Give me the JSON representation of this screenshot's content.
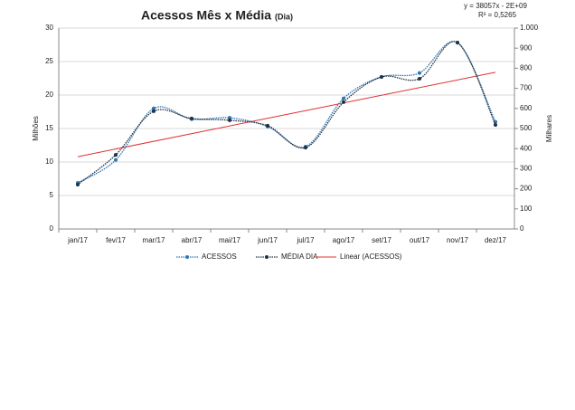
{
  "chart_data": {
    "type": "line",
    "title": "Acessos Mês x Média",
    "title_suffix": "(Dia)",
    "y_label": "Milhões",
    "y2_label": "Milhares",
    "trend_equation": "y = 38057x - 2E+09",
    "trend_r2": "R² = 0,5265",
    "categories": [
      "jan/17",
      "fev/17",
      "mar/17",
      "abr/17",
      "mai/17",
      "jun/17",
      "jul/17",
      "ago/17",
      "set/17",
      "out/17",
      "nov/17",
      "dez/17"
    ],
    "series": [
      {
        "name": "ACESSOS",
        "color": "#2e75b6",
        "values": [
          6.9,
          10.3,
          18.0,
          16.4,
          16.6,
          15.3,
          12.3,
          19.5,
          22.7,
          23.3,
          27.8,
          16.0
        ]
      },
      {
        "name": "MÉDIA DIA",
        "color": "#203040",
        "axis": "y2",
        "values": [
          221,
          369,
          586,
          550,
          541,
          514,
          405,
          631,
          757,
          748,
          928,
          518
        ]
      }
    ],
    "trendline": {
      "name": "Linear (ACESSOS)",
      "color": "#e03030",
      "start": 10.8,
      "end": 23.4
    },
    "ylim": [
      0,
      30
    ],
    "yticks": [
      0,
      5,
      10,
      15,
      20,
      25,
      30
    ],
    "y2lim": [
      0,
      1000
    ],
    "y2ticks": [
      0,
      100,
      200,
      300,
      400,
      500,
      600,
      700,
      800,
      900,
      {
        "value": 1000,
        "label": "1.000"
      }
    ],
    "grid": true
  }
}
